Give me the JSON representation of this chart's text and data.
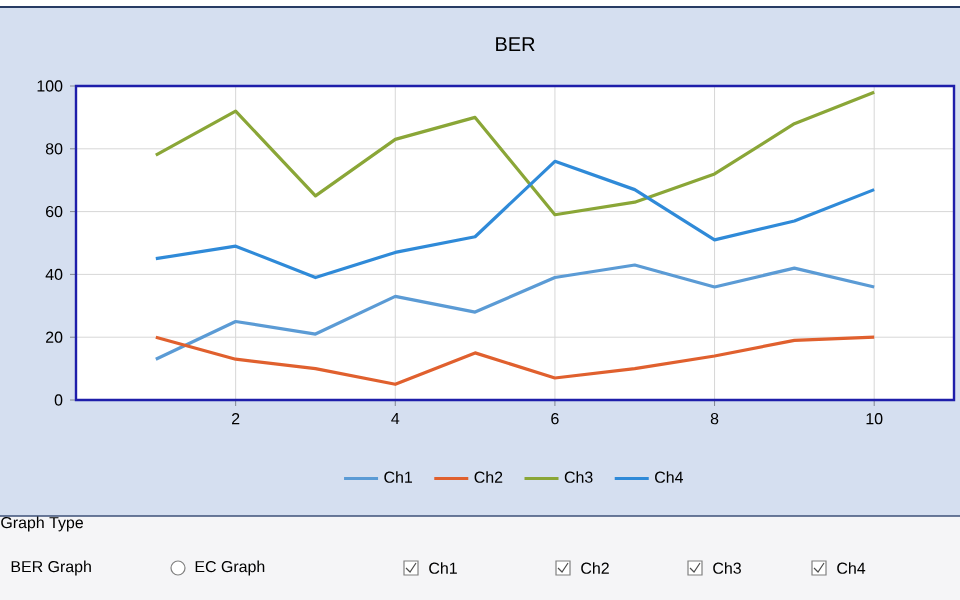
{
  "chart_data": {
    "type": "line",
    "title": "BER",
    "x": [
      1,
      2,
      3,
      4,
      5,
      6,
      7,
      8,
      9,
      10
    ],
    "series": [
      {
        "name": "Ch1",
        "color": "#5b9bd5",
        "values": [
          13,
          25,
          21,
          33,
          28,
          39,
          43,
          36,
          42,
          36
        ]
      },
      {
        "name": "Ch2",
        "color": "#e0602e",
        "values": [
          20,
          13,
          10,
          5,
          15,
          7,
          10,
          14,
          19,
          20
        ]
      },
      {
        "name": "Ch3",
        "color": "#8aa637",
        "values": [
          78,
          92,
          65,
          83,
          90,
          59,
          63,
          72,
          88,
          98
        ]
      },
      {
        "name": "Ch4",
        "color": "#2f8ad8",
        "values": [
          45,
          49,
          39,
          47,
          52,
          76,
          67,
          51,
          57,
          67
        ]
      }
    ],
    "xlim": [
      0,
      11
    ],
    "ylim": [
      0,
      100
    ],
    "xticks": [
      2,
      4,
      6,
      8,
      10
    ],
    "yticks": [
      0,
      20,
      40,
      60,
      80,
      100
    ],
    "grid": true,
    "legend": "bottom",
    "marker": "none",
    "line_style": "solid",
    "annotations": [
      "Graph Type",
      "BER Graph",
      "EC Graph",
      "Ch1",
      "Ch2",
      "Ch3",
      "Ch4"
    ]
  }
}
